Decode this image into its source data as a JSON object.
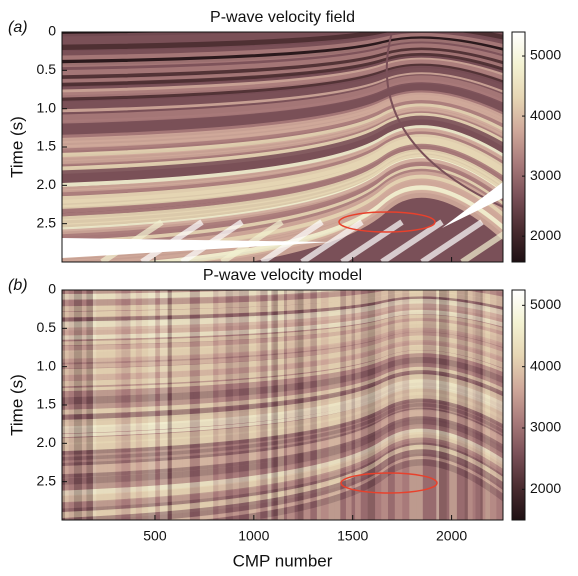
{
  "chart_data": [
    {
      "type": "heatmap",
      "panel_label": "(a)",
      "title": "P-wave velocity field",
      "ylabel": "Time (s)",
      "xlim": [
        30,
        2260
      ],
      "xticks": [
        500,
        1000,
        1500,
        2000
      ],
      "ylim": [
        0,
        3
      ],
      "yticks": [
        0,
        0.5,
        {
          "value": 1,
          "label": "1.0"
        },
        1.5,
        {
          "value": 2,
          "label": "2.0"
        },
        2.5
      ],
      "clim": [
        1570,
        5400
      ],
      "cticks": [
        2000,
        3000,
        4000,
        5000
      ],
      "colormap": [
        "#1e1013",
        "#4a2c30",
        "#7a5058",
        "#a87a7a",
        "#cfa89a",
        "#e6d6b4",
        "#f3f2d2",
        "#ffffff"
      ]
    },
    {
      "type": "heatmap",
      "panel_label": "(b)",
      "title": "P-wave velocity model",
      "ylabel": "Time (s)",
      "xlabel": "CMP number",
      "xlim": [
        30,
        2260
      ],
      "xticks": [
        500,
        1000,
        1500,
        2000
      ],
      "ylim": [
        0,
        3
      ],
      "yticks": [
        0,
        0.5,
        {
          "value": 1,
          "label": "1.0"
        },
        1.5,
        {
          "value": 2,
          "label": "2.0"
        },
        2.5
      ],
      "clim": [
        1500,
        5250
      ],
      "cticks": [
        2000,
        3000,
        4000,
        5000
      ],
      "colormap": [
        "#1e1013",
        "#4a2c30",
        "#7a5058",
        "#a87a7a",
        "#cfa89a",
        "#e6d6b4",
        "#f3f2d2",
        "#ffffff"
      ]
    }
  ]
}
